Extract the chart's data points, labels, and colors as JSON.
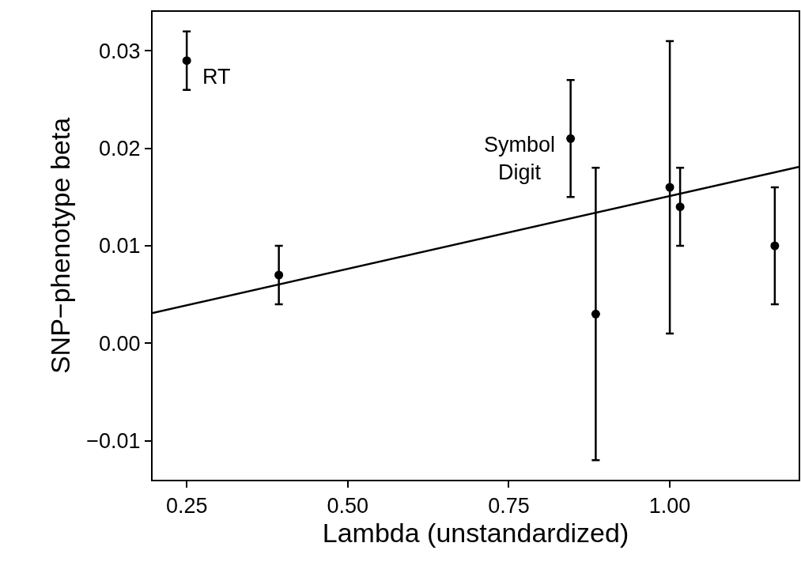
{
  "chart_data": {
    "type": "scatter",
    "xlabel": "Lambda (unstandardized)",
    "ylabel": "SNP−phenotype beta",
    "x": [
      0.25,
      0.393,
      0.846,
      0.885,
      1.0,
      1.016,
      1.163
    ],
    "series": [
      {
        "color": "#000000",
        "marker": "circle",
        "values": [
          0.029,
          0.007,
          0.021,
          0.003,
          0.016,
          0.014,
          0.01
        ],
        "errors": [
          [
            0.026,
            0.032
          ],
          [
            0.004,
            0.01
          ],
          [
            0.015,
            0.027
          ],
          [
            -0.012,
            0.018
          ],
          [
            0.001,
            0.031
          ],
          [
            0.01,
            0.018
          ],
          [
            0.004,
            0.016
          ]
        ]
      },
      {
        "type": "line",
        "color": "#000000",
        "x": [
          0.197,
          1.2
        ],
        "values": [
          0.0031,
          0.0181
        ],
        "line_style": "solid"
      }
    ],
    "annotations": [
      {
        "text": "RT",
        "x": 0.25,
        "y": 0.029
      },
      {
        "text": "Symbol\nDigit",
        "x": 0.846,
        "y": 0.021
      }
    ],
    "xlim": [
      0.197,
      1.2
    ],
    "xticks": [
      {
        "value": 0.25,
        "label": "0.25"
      },
      {
        "value": 0.5,
        "label": "0.50"
      },
      {
        "value": 0.75,
        "label": "0.75"
      },
      {
        "value": 1.0,
        "label": "1.00"
      }
    ],
    "ylim": [
      -0.014,
      0.034
    ],
    "yticks": [
      {
        "value": -0.01,
        "label": "−0.01"
      },
      {
        "value": 0,
        "label": "0.00"
      },
      {
        "value": 0.01,
        "label": "0.01"
      },
      {
        "value": 0.02,
        "label": "0.02"
      },
      {
        "value": 0.03,
        "label": "0.03"
      }
    ],
    "grid": false
  }
}
